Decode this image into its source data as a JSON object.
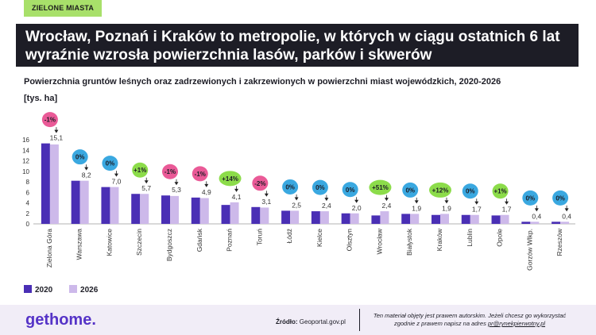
{
  "badge": "ZIELONE MIASTA",
  "title": "Wrocław, Poznań i Kraków to metropolie, w których w ciągu ostatnich 6 lat wyraźnie wzrosła powierzchnia lasów, parków i skwerów",
  "subtitle": "Powierzchnia gruntów leśnych oraz zadrzewionych i zakrzewionych w powierzchni miast wojewódzkich, 2020-2026",
  "unit": "[tys. ha]",
  "footer": {
    "logo": "gethome.",
    "source_label": "Źródło:",
    "source_value": "Geoportal.gov.pl",
    "copyright_line1": "Ten materiał objęty jest prawem autorskim. Jeżeli chcesz go wykorzystać",
    "copyright_line2_prefix": "zgodnie z prawem napisz na adres",
    "copyright_email": "pr@rynekpierwotny.pl"
  },
  "colors": {
    "series_2020": "#4a2fb5",
    "series_2026": "#cdb9ea",
    "badge_neutral": "#3aa8e0",
    "badge_up": "#8cdc4a",
    "badge_down": "#ea5a97"
  },
  "chart_data": {
    "type": "bar",
    "categories": [
      "Zielona Góra",
      "Warszawa",
      "Katowice",
      "Szczecin",
      "Bydgoszcz",
      "Gdańsk",
      "Poznań",
      "Toruń",
      "Łódź",
      "Kielce",
      "Olsztyn",
      "Wrocław",
      "Białystok",
      "Kraków",
      "Lublin",
      "Opole",
      "Gorzów Wlkp.",
      "Rzeszów"
    ],
    "series": [
      {
        "name": "2020",
        "values": [
          15.3,
          8.2,
          7.0,
          5.7,
          5.4,
          5.0,
          3.6,
          3.2,
          2.5,
          2.4,
          2.0,
          1.6,
          1.9,
          1.7,
          1.7,
          1.6,
          0.4,
          0.4
        ]
      },
      {
        "name": "2026",
        "values": [
          15.1,
          8.2,
          7.0,
          5.7,
          5.3,
          4.9,
          4.1,
          3.1,
          2.5,
          2.4,
          2.0,
          2.4,
          1.9,
          1.9,
          1.7,
          1.7,
          0.4,
          0.4
        ]
      }
    ],
    "value_labels": [
      "15,1",
      "8,2",
      "7,0",
      "5,7",
      "5,3",
      "4,9",
      "4,1",
      "3,1",
      "2,5",
      "2,4",
      "2,0",
      "2,4",
      "1,9",
      "1,9",
      "1,7",
      "1,7",
      "0,4",
      "0,4"
    ],
    "changes": [
      "-1%",
      "0%",
      "0%",
      "+1%",
      "-1%",
      "-1%",
      "+14%",
      "-2%",
      "0%",
      "0%",
      "0%",
      "+51%",
      "0%",
      "+12%",
      "0%",
      "+1%",
      "0%",
      "0%"
    ],
    "change_kind": [
      "down",
      "neutral",
      "neutral",
      "up",
      "down",
      "down",
      "up",
      "down",
      "neutral",
      "neutral",
      "neutral",
      "up",
      "neutral",
      "up",
      "neutral",
      "up",
      "neutral",
      "neutral"
    ],
    "y_ticks": [
      "0",
      "2",
      "4",
      "6",
      "8",
      "10",
      "12",
      "14",
      "16"
    ],
    "ylim": [
      0,
      16
    ],
    "grid": false,
    "legend_position": "bottom-left"
  }
}
